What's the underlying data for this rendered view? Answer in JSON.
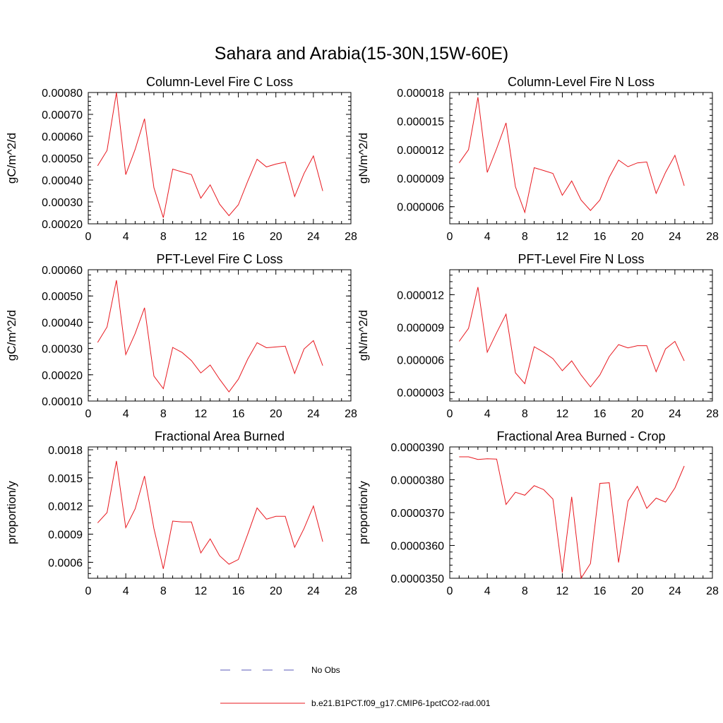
{
  "figure": {
    "title": "Sahara and Arabia(15-30N,15W-60E)"
  },
  "legend": {
    "items": [
      {
        "label": "No Obs",
        "color": "#5a5ab8",
        "style": "dashed"
      },
      {
        "label": "b.e21.B1PCT.f09_g17.CMIP6-1pctCO2-rad.001",
        "color": "#e8181f",
        "style": "solid"
      }
    ]
  },
  "chart_data": [
    {
      "type": "line",
      "title": "Column-Level Fire C Loss",
      "xlabel": "",
      "ylabel": "gC/m^2/d",
      "xlim": [
        0,
        28
      ],
      "ylim": [
        0.0002,
        0.0008
      ],
      "xticks": [
        0,
        4,
        8,
        12,
        16,
        20,
        24,
        28
      ],
      "yticks": [
        0.0002,
        0.0003,
        0.0004,
        0.0005,
        0.0006,
        0.0007,
        0.0008
      ],
      "ytick_labels": [
        "0.00020",
        "0.00030",
        "0.00040",
        "0.00050",
        "0.00060",
        "0.00070",
        "0.00080"
      ],
      "x": [
        1,
        2,
        3,
        4,
        5,
        6,
        7,
        8,
        9,
        10,
        11,
        12,
        13,
        14,
        15,
        16,
        17,
        18,
        19,
        20,
        21,
        22,
        23,
        24,
        25
      ],
      "series": [
        {
          "color": "#e8181f",
          "values": [
            0.000465,
            0.000535,
            0.0008,
            0.000425,
            0.00054,
            0.00068,
            0.000365,
            0.000228,
            0.00045,
            0.000437,
            0.000425,
            0.000317,
            0.000378,
            0.00029,
            0.000237,
            0.000287,
            0.000395,
            0.000495,
            0.00046,
            0.000473,
            0.000482,
            0.000325,
            0.00043,
            0.00051,
            0.00035
          ]
        }
      ]
    },
    {
      "type": "line",
      "title": "Column-Level Fire N Loss",
      "xlabel": "",
      "ylabel": "gN/m^2/d",
      "xlim": [
        0,
        28
      ],
      "ylim": [
        4.2e-06,
        1.8e-05
      ],
      "xticks": [
        0,
        4,
        8,
        12,
        16,
        20,
        24,
        28
      ],
      "yticks": [
        6e-06,
        9e-06,
        1.2e-05,
        1.5e-05,
        1.8e-05
      ],
      "ytick_labels": [
        "0.000006",
        "0.000009",
        "0.000012",
        "0.000015",
        "0.000018"
      ],
      "x": [
        1,
        2,
        3,
        4,
        5,
        6,
        7,
        8,
        9,
        10,
        11,
        12,
        13,
        14,
        15,
        16,
        17,
        18,
        19,
        20,
        21,
        22,
        23,
        24,
        25
      ],
      "series": [
        {
          "color": "#e8181f",
          "values": [
            1.06e-05,
            1.2e-05,
            1.75e-05,
            9.6e-06,
            1.21e-05,
            1.48e-05,
            8.1e-06,
            5.4e-06,
            1.01e-05,
            9.8e-06,
            9.5e-06,
            7.2e-06,
            8.7e-06,
            6.7e-06,
            5.6e-06,
            6.7e-06,
            9.1e-06,
            1.09e-05,
            1.02e-05,
            1.06e-05,
            1.07e-05,
            7.4e-06,
            9.6e-06,
            1.14e-05,
            8.2e-06
          ]
        }
      ]
    },
    {
      "type": "line",
      "title": "PFT-Level Fire C Loss",
      "xlabel": "",
      "ylabel": "gC/m^2/d",
      "xlim": [
        0,
        28
      ],
      "ylim": [
        0.0001,
        0.0006
      ],
      "xticks": [
        0,
        4,
        8,
        12,
        16,
        20,
        24,
        28
      ],
      "yticks": [
        0.0001,
        0.0002,
        0.0003,
        0.0004,
        0.0005,
        0.0006
      ],
      "ytick_labels": [
        "0.00010",
        "0.00020",
        "0.00030",
        "0.00040",
        "0.00050",
        "0.00060"
      ],
      "x": [
        1,
        2,
        3,
        4,
        5,
        6,
        7,
        8,
        9,
        10,
        11,
        12,
        13,
        14,
        15,
        16,
        17,
        18,
        19,
        20,
        21,
        22,
        23,
        24,
        25
      ],
      "series": [
        {
          "color": "#e8181f",
          "values": [
            0.000323,
            0.000382,
            0.00056,
            0.000277,
            0.000357,
            0.000455,
            0.000195,
            0.000147,
            0.000304,
            0.000285,
            0.000254,
            0.000207,
            0.000237,
            0.000183,
            0.000135,
            0.000183,
            0.00026,
            0.000322,
            0.000303,
            0.000306,
            0.000309,
            0.000205,
            0.000298,
            0.00033,
            0.000235
          ]
        }
      ]
    },
    {
      "type": "line",
      "title": "PFT-Level Fire N Loss",
      "xlabel": "",
      "ylabel": "gN/m^2/d",
      "xlim": [
        0,
        28
      ],
      "ylim": [
        2.2e-06,
        1.43e-05
      ],
      "xticks": [
        0,
        4,
        8,
        12,
        16,
        20,
        24,
        28
      ],
      "yticks": [
        3e-06,
        6e-06,
        9e-06,
        1.2e-05
      ],
      "ytick_labels": [
        "0.000003",
        "0.000006",
        "0.000009",
        "0.000012"
      ],
      "x": [
        1,
        2,
        3,
        4,
        5,
        6,
        7,
        8,
        9,
        10,
        11,
        12,
        13,
        14,
        15,
        16,
        17,
        18,
        19,
        20,
        21,
        22,
        23,
        24,
        25
      ],
      "series": [
        {
          "color": "#e8181f",
          "values": [
            7.7e-06,
            8.9e-06,
            1.27e-05,
            6.7e-06,
            8.5e-06,
            1.02e-05,
            4.8e-06,
            3.8e-06,
            7.2e-06,
            6.7e-06,
            6.1e-06,
            5e-06,
            5.9e-06,
            4.6e-06,
            3.5e-06,
            4.6e-06,
            6.3e-06,
            7.4e-06,
            7.1e-06,
            7.3e-06,
            7.3e-06,
            4.9e-06,
            7e-06,
            7.7e-06,
            5.9e-06
          ]
        }
      ]
    },
    {
      "type": "line",
      "title": "Fractional Area Burned",
      "xlabel": "",
      "ylabel": "proportion/y",
      "xlim": [
        0,
        28
      ],
      "ylim": [
        0.00043,
        0.00183
      ],
      "xticks": [
        0,
        4,
        8,
        12,
        16,
        20,
        24,
        28
      ],
      "yticks": [
        0.0006,
        0.0009,
        0.0012,
        0.0015,
        0.0018
      ],
      "ytick_labels": [
        "0.0006",
        "0.0009",
        "0.0012",
        "0.0015",
        "0.0018"
      ],
      "x": [
        1,
        2,
        3,
        4,
        5,
        6,
        7,
        8,
        9,
        10,
        11,
        12,
        13,
        14,
        15,
        16,
        17,
        18,
        19,
        20,
        21,
        22,
        23,
        24,
        25
      ],
      "series": [
        {
          "color": "#e8181f",
          "values": [
            0.00102,
            0.00113,
            0.00168,
            0.00097,
            0.00117,
            0.00152,
            0.00096,
            0.00053,
            0.00104,
            0.00103,
            0.00103,
            0.0007,
            0.00085,
            0.00067,
            0.00058,
            0.00063,
            0.0009,
            0.00118,
            0.00106,
            0.00109,
            0.00109,
            0.00076,
            0.00096,
            0.0012,
            0.00082
          ]
        }
      ]
    },
    {
      "type": "line",
      "title": "Fractional Area Burned - Crop",
      "xlabel": "",
      "ylabel": "proportion/y",
      "xlim": [
        0,
        28
      ],
      "ylim": [
        3.5e-05,
        3.9e-05
      ],
      "xticks": [
        0,
        4,
        8,
        12,
        16,
        20,
        24,
        28
      ],
      "yticks": [
        3.5e-05,
        3.6e-05,
        3.7e-05,
        3.8e-05,
        3.9e-05
      ],
      "ytick_labels": [
        "0.0000350",
        "0.0000360",
        "0.0000370",
        "0.0000380",
        "0.0000390"
      ],
      "x": [
        1,
        2,
        3,
        4,
        5,
        6,
        7,
        8,
        9,
        10,
        11,
        12,
        13,
        14,
        15,
        16,
        17,
        18,
        19,
        20,
        21,
        22,
        23,
        24,
        25
      ],
      "series": [
        {
          "color": "#e8181f",
          "values": [
            3.87e-05,
            3.87e-05,
            3.862e-05,
            3.864e-05,
            3.863e-05,
            3.725e-05,
            3.762e-05,
            3.753e-05,
            3.782e-05,
            3.77e-05,
            3.741e-05,
            3.517e-05,
            3.748e-05,
            3.5e-05,
            3.545e-05,
            3.789e-05,
            3.791e-05,
            3.548e-05,
            3.735e-05,
            3.78e-05,
            3.713e-05,
            3.744e-05,
            3.732e-05,
            3.775e-05,
            3.842e-05
          ]
        }
      ]
    }
  ]
}
